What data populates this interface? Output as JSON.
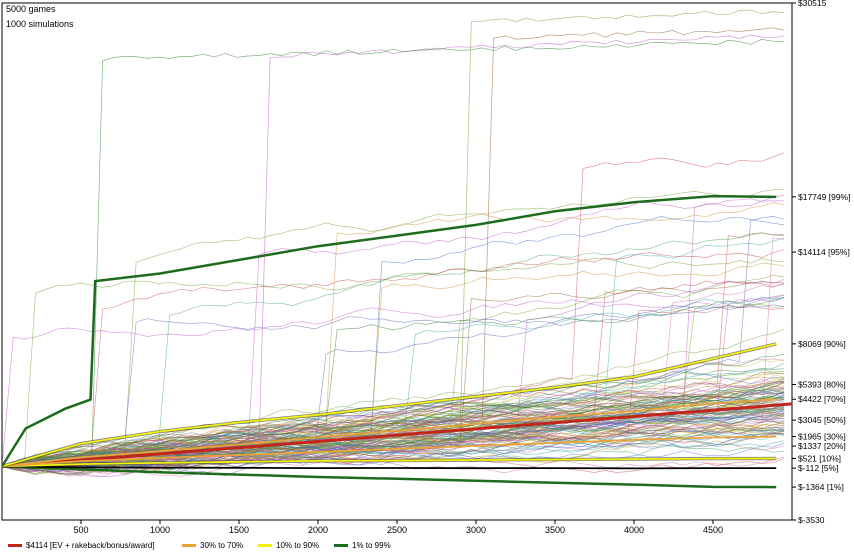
{
  "info": {
    "games": "5000 games",
    "simulations": "1000 simulations"
  },
  "colors": {
    "ev": "#c0261a",
    "band_30_70": "#e8a33a",
    "band_10_90": "#f2f20e",
    "band_1_99": "#1d6b1d",
    "band_5_95": "#000000"
  },
  "legend": [
    {
      "label": "$4114 [EV + rakeback/bonus/award]",
      "color": "#c0261a"
    },
    {
      "label": "30% to 70%",
      "color": "#e8a33a"
    },
    {
      "label": "10% to 90%",
      "color": "#f2f20e"
    },
    {
      "label": "1% to 99%",
      "color": "#1d6b1d"
    }
  ],
  "chart_data": {
    "type": "line",
    "xlim": [
      0,
      5000
    ],
    "ylim": [
      -3530,
      30515
    ],
    "x_ticks": [
      500,
      1000,
      1500,
      2000,
      2500,
      3000,
      3500,
      4000,
      4500
    ],
    "right_labels": [
      {
        "value": 30515,
        "text": "$30515"
      },
      {
        "value": 17749,
        "text": "$17749 [99%]"
      },
      {
        "value": 14114,
        "text": "$14114 [95%]"
      },
      {
        "value": 8069,
        "text": "$8069 [90%]"
      },
      {
        "value": 5393,
        "text": "$5393 [80%]"
      },
      {
        "value": 4422,
        "text": "$4422 [70%]"
      },
      {
        "value": 3045,
        "text": "$3045 [50%]"
      },
      {
        "value": 1965,
        "text": "$1965 [30%]"
      },
      {
        "value": 1337,
        "text": "$1337 [20%]"
      },
      {
        "value": 521,
        "text": "$521 [10%]"
      },
      {
        "value": -112,
        "text": "$-112 [5%]"
      },
      {
        "value": -1364,
        "text": "$-1364 [1%]"
      },
      {
        "value": -3530,
        "text": "$-3530"
      }
    ],
    "series": [
      {
        "key": "ev",
        "name": "$4114 [EV + rakeback/bonus/award]",
        "x": [
          0,
          5000
        ],
        "y": [
          0,
          4114
        ]
      },
      {
        "key": "p1",
        "x": [
          0,
          500,
          1000,
          1500,
          2000,
          2500,
          3000,
          3500,
          4000,
          4500,
          4900
        ],
        "y": [
          0,
          -200,
          -380,
          -540,
          -700,
          -820,
          -950,
          -1080,
          -1200,
          -1350,
          -1364
        ]
      },
      {
        "key": "p5",
        "x": [
          0,
          500,
          1000,
          1500,
          2000,
          2500,
          3000,
          3500,
          4000,
          4500,
          4900
        ],
        "y": [
          0,
          -60,
          -80,
          -95,
          -110,
          -105,
          -120,
          -110,
          -130,
          -115,
          -112
        ]
      },
      {
        "key": "p10",
        "x": [
          0,
          500,
          1000,
          1500,
          2000,
          2500,
          3000,
          3500,
          4000,
          4500,
          4900
        ],
        "y": [
          0,
          150,
          230,
          300,
          360,
          380,
          420,
          450,
          480,
          510,
          521
        ]
      },
      {
        "key": "p30",
        "x": [
          0,
          500,
          1000,
          1500,
          2000,
          2500,
          3000,
          3500,
          4000,
          4500,
          4900
        ],
        "y": [
          0,
          350,
          550,
          750,
          950,
          1150,
          1350,
          1550,
          1750,
          1900,
          1965
        ]
      },
      {
        "key": "p70",
        "x": [
          0,
          500,
          1000,
          1500,
          2000,
          2500,
          3000,
          3500,
          4000,
          4500,
          4900
        ],
        "y": [
          0,
          600,
          1000,
          1450,
          1900,
          2350,
          2800,
          3250,
          3650,
          4150,
          4422
        ]
      },
      {
        "key": "p90",
        "x": [
          0,
          500,
          1000,
          1500,
          2000,
          2500,
          3000,
          3500,
          4000,
          4500,
          4900
        ],
        "y": [
          0,
          1500,
          2300,
          2900,
          3400,
          4000,
          4600,
          5200,
          5900,
          7100,
          8069
        ]
      },
      {
        "key": "p99",
        "x": [
          0,
          150,
          400,
          560,
          590,
          1000,
          1500,
          2000,
          2500,
          3000,
          3500,
          4000,
          4500,
          4900
        ],
        "y": [
          0,
          2500,
          3800,
          4400,
          12200,
          12700,
          13600,
          14500,
          15200,
          15900,
          16800,
          17400,
          17800,
          17749
        ]
      }
    ]
  }
}
